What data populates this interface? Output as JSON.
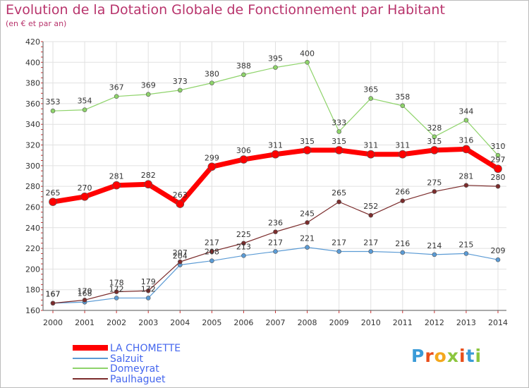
{
  "title": "Evolution de la Dotation Globale de Fonctionnement par Habitant",
  "subtitle": "(en € et par an)",
  "logo": {
    "text": "Proxiti",
    "colors": [
      "#3a9bd8",
      "#e94e1b",
      "#f4a81d",
      "#8cc63f",
      "#e94e1b",
      "#3a9bd8",
      "#8cc63f"
    ]
  },
  "chart_data": {
    "type": "line",
    "title": "Evolution de la Dotation Globale de Fonctionnement par Habitant",
    "subtitle": "(en € et par an)",
    "x": [
      2000,
      2001,
      2002,
      2003,
      2004,
      2005,
      2006,
      2007,
      2008,
      2009,
      2010,
      2011,
      2012,
      2013,
      2014
    ],
    "ylim": [
      160,
      420
    ],
    "yticks": [
      160,
      180,
      200,
      220,
      240,
      260,
      280,
      300,
      320,
      340,
      360,
      380,
      400,
      420
    ],
    "grid": true,
    "legend_position": "bottom-left",
    "series": [
      {
        "name": "LA CHOMETTE",
        "color": "#ff0000",
        "values": [
          265,
          270,
          281,
          282,
          263,
          299,
          306,
          311,
          315,
          315,
          311,
          311,
          315,
          316,
          297
        ]
      },
      {
        "name": "Salzuit",
        "color": "#5b9bd5",
        "values": [
          167,
          168,
          172,
          172,
          204,
          208,
          213,
          217,
          221,
          217,
          217,
          216,
          214,
          215,
          209
        ]
      },
      {
        "name": "Domeyrat",
        "color": "#8ed36a",
        "values": [
          353,
          354,
          367,
          369,
          373,
          380,
          388,
          395,
          400,
          333,
          365,
          358,
          328,
          344,
          310
        ]
      },
      {
        "name": "Paulhaguet",
        "color": "#7b2c2c",
        "values": [
          167,
          170,
          178,
          179,
          207,
          217,
          225,
          236,
          245,
          265,
          252,
          266,
          275,
          281,
          280
        ]
      }
    ]
  }
}
